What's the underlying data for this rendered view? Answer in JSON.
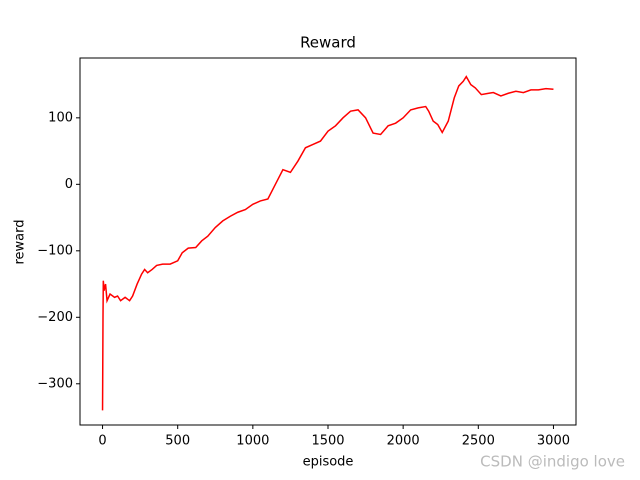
{
  "chart_data": {
    "type": "line",
    "title": "Reward",
    "x_label": "episode",
    "y_label": "reward",
    "watermark": "CSDN @indigo  love",
    "xlim": [
      -150,
      3150
    ],
    "xticks": [
      0,
      500,
      1000,
      1500,
      2000,
      2500,
      3000
    ],
    "ylim": [
      -362,
      190
    ],
    "yticks": [
      {
        "value": -300,
        "label": "−300"
      },
      {
        "value": -200,
        "label": "−200"
      },
      {
        "value": -100,
        "label": "−100"
      },
      0,
      100
    ],
    "series": [
      {
        "name": "reward",
        "color": "#ff0000",
        "x": [
          0,
          3,
          5,
          10,
          20,
          30,
          50,
          80,
          100,
          120,
          150,
          180,
          200,
          230,
          260,
          280,
          300,
          330,
          360,
          400,
          450,
          500,
          530,
          570,
          620,
          660,
          700,
          750,
          800,
          850,
          900,
          950,
          1000,
          1050,
          1100,
          1150,
          1200,
          1250,
          1300,
          1350,
          1400,
          1450,
          1500,
          1550,
          1600,
          1650,
          1700,
          1750,
          1800,
          1850,
          1900,
          1950,
          2000,
          2050,
          2100,
          2150,
          2170,
          2200,
          2230,
          2260,
          2300,
          2340,
          2370,
          2400,
          2420,
          2450,
          2480,
          2520,
          2570,
          2600,
          2650,
          2700,
          2750,
          2800,
          2850,
          2900,
          2950,
          3000
        ],
        "values": [
          -340,
          -200,
          -145,
          -160,
          -150,
          -175,
          -165,
          -170,
          -168,
          -175,
          -170,
          -175,
          -168,
          -150,
          -135,
          -128,
          -133,
          -128,
          -122,
          -120,
          -120,
          -115,
          -103,
          -96,
          -95,
          -85,
          -78,
          -65,
          -55,
          -48,
          -42,
          -38,
          -30,
          -25,
          -22,
          0,
          22,
          18,
          35,
          55,
          60,
          65,
          80,
          88,
          100,
          110,
          112,
          100,
          77,
          75,
          88,
          92,
          100,
          112,
          115,
          117,
          110,
          95,
          90,
          78,
          95,
          130,
          148,
          155,
          162,
          150,
          145,
          135,
          137,
          138,
          133,
          137,
          140,
          138,
          142,
          142,
          144,
          143
        ]
      }
    ]
  }
}
